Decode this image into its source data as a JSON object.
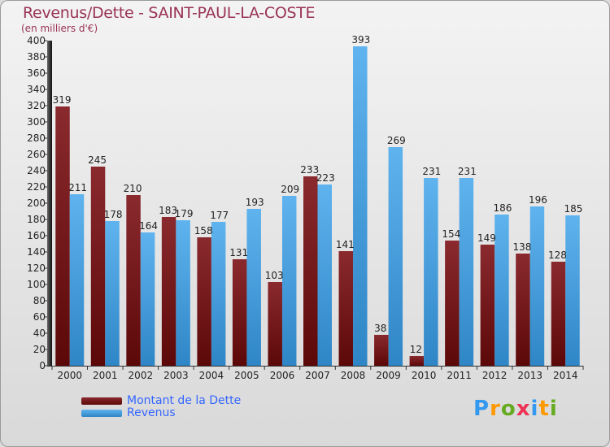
{
  "chart_data": {
    "type": "bar",
    "title": "Revenus/Dette - SAINT-PAUL-LA-COSTE",
    "subtitle": "(en milliers d'€)",
    "categories": [
      "2000",
      "2001",
      "2002",
      "2003",
      "2004",
      "2005",
      "2006",
      "2007",
      "2008",
      "2009",
      "2010",
      "2011",
      "2012",
      "2013",
      "2014"
    ],
    "series": [
      {
        "name": "Montant de la Dette",
        "color": "#7f1f25",
        "values": [
          319,
          245,
          210,
          183,
          158,
          131,
          103,
          233,
          141,
          38,
          12,
          154,
          149,
          138,
          128
        ]
      },
      {
        "name": "Revenus",
        "color": "#4aa3e2",
        "values": [
          211,
          178,
          164,
          179,
          177,
          193,
          209,
          223,
          393,
          269,
          231,
          231,
          186,
          196,
          185
        ]
      }
    ],
    "ylim": [
      0,
      400
    ],
    "ytick_step": 20,
    "grid": false,
    "legend": "bottom-left"
  },
  "brand": {
    "letters": [
      "P",
      "r",
      "o",
      "x",
      "i",
      "t",
      "i"
    ],
    "colors": [
      "#3399ee",
      "#ff9900",
      "#66aa22",
      "#ee3355",
      "#3399ee",
      "#ff9900",
      "#66aa22"
    ]
  }
}
